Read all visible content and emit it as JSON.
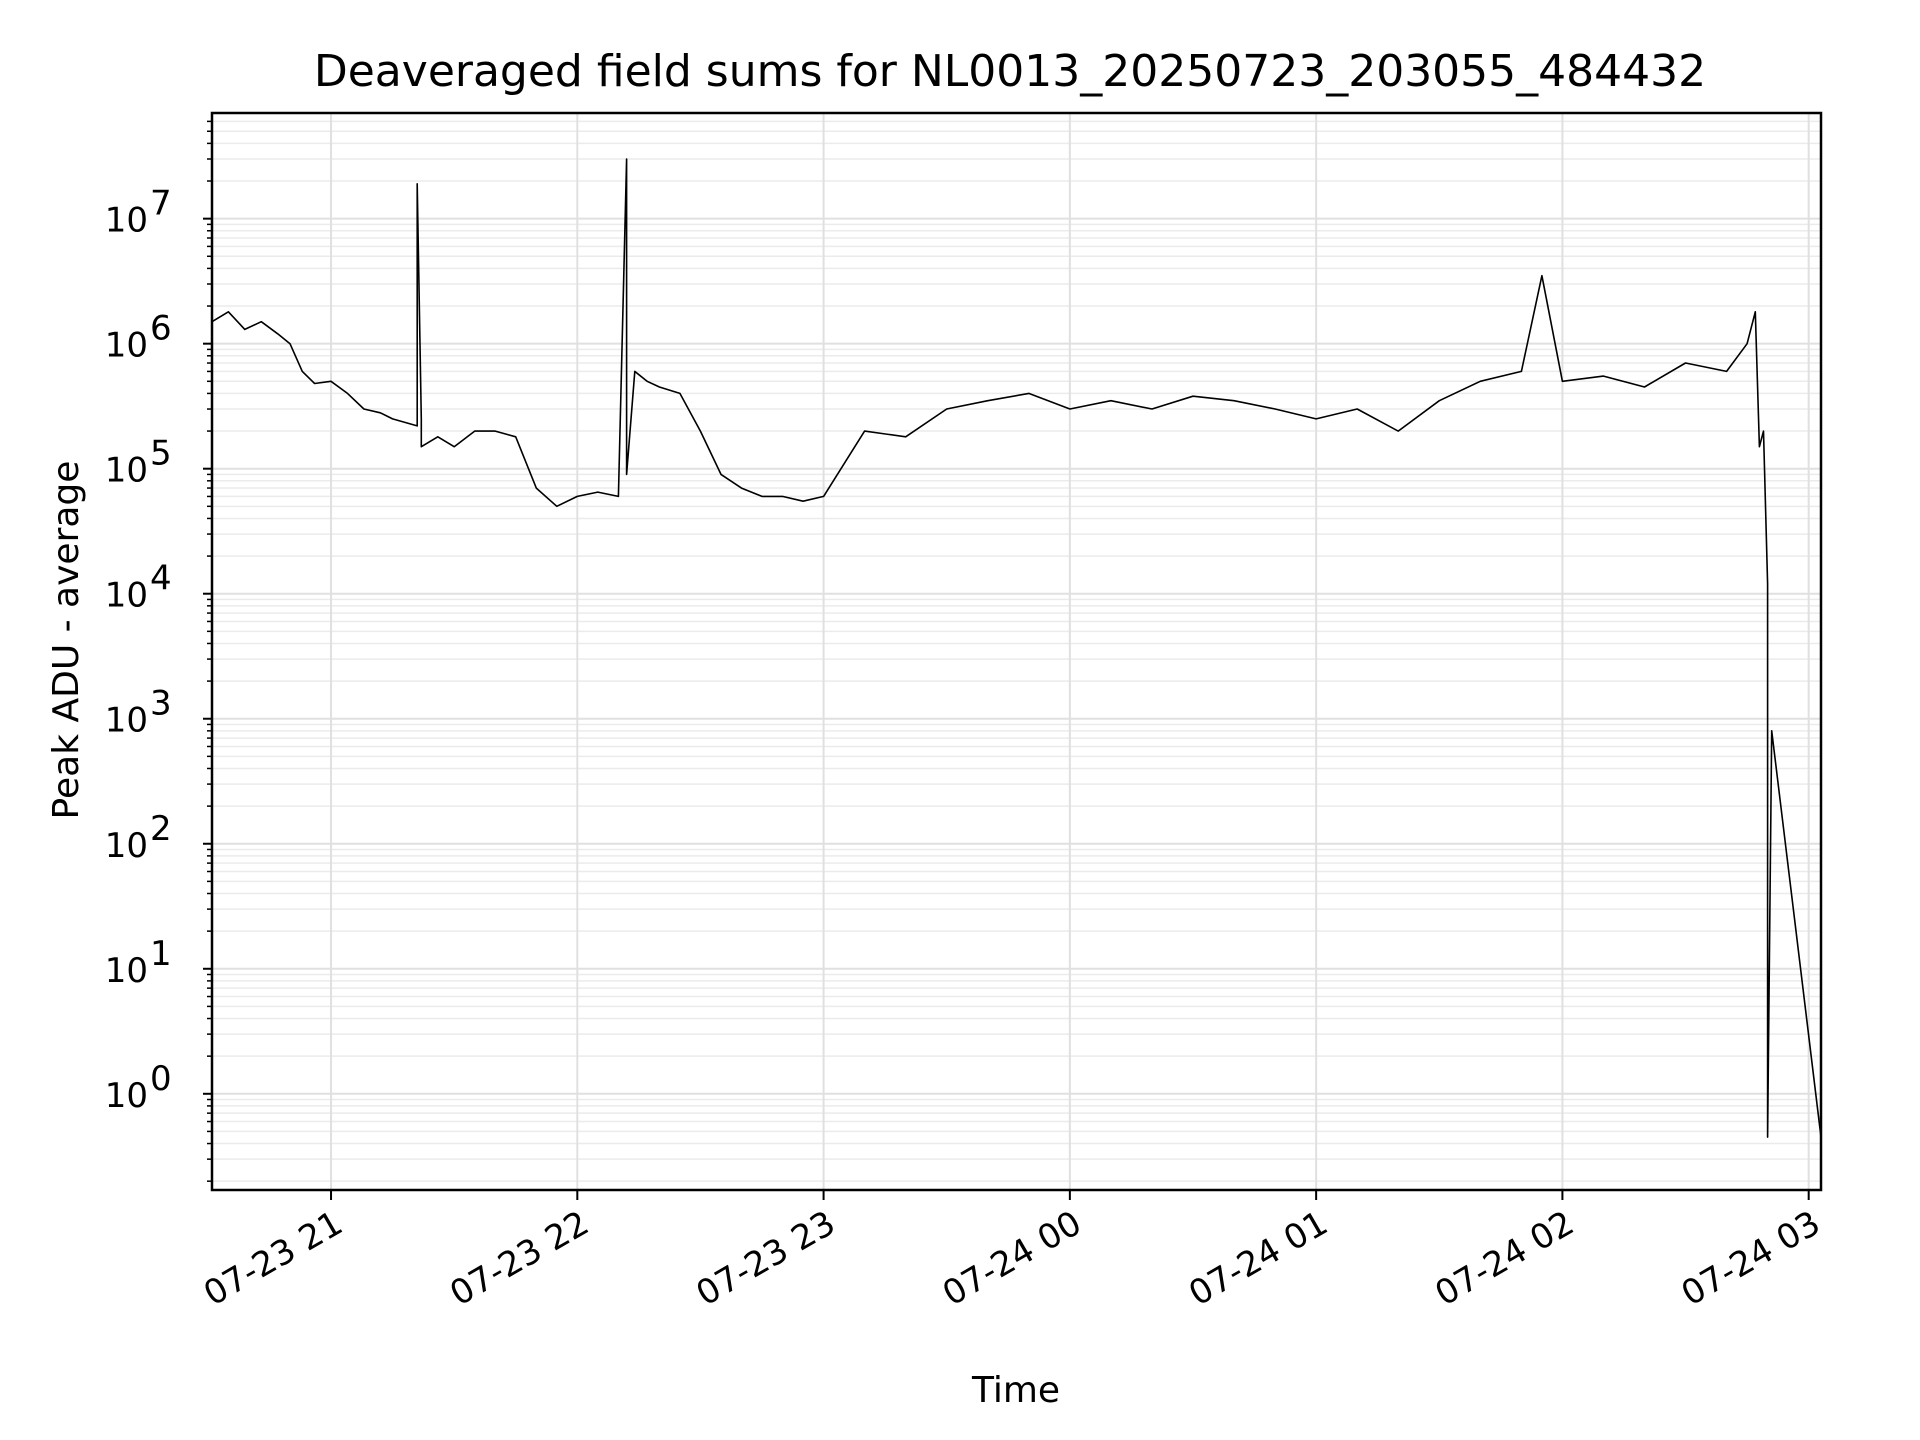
{
  "chart_data": {
    "type": "line",
    "title": "Deaveraged field sums for NL0013_20250723_203055_484432",
    "xlabel": "Time",
    "ylabel": "Peak ADU - average",
    "yscale": "log",
    "ylim": [
      0.17,
      70000000
    ],
    "xlim": [
      "2025-07-23 20:31",
      "2025-07-24 03:03"
    ],
    "grid": true,
    "color": "#000000",
    "x_ticks": [
      {
        "t": "2025-07-23 21:00",
        "label": "07-23 21"
      },
      {
        "t": "2025-07-23 22:00",
        "label": "07-23 22"
      },
      {
        "t": "2025-07-23 23:00",
        "label": "07-23 23"
      },
      {
        "t": "2025-07-24 00:00",
        "label": "07-24 00"
      },
      {
        "t": "2025-07-24 01:00",
        "label": "07-24 01"
      },
      {
        "t": "2025-07-24 02:00",
        "label": "07-24 02"
      },
      {
        "t": "2025-07-24 03:00",
        "label": "07-24 03"
      }
    ],
    "y_ticks": [
      {
        "v": 1,
        "base": "10",
        "exp": "0"
      },
      {
        "v": 10,
        "base": "10",
        "exp": "1"
      },
      {
        "v": 100,
        "base": "10",
        "exp": "2"
      },
      {
        "v": 1000,
        "base": "10",
        "exp": "3"
      },
      {
        "v": 10000,
        "base": "10",
        "exp": "4"
      },
      {
        "v": 100000,
        "base": "10",
        "exp": "5"
      },
      {
        "v": 1000000,
        "base": "10",
        "exp": "6"
      },
      {
        "v": 10000000,
        "base": "10",
        "exp": "7"
      }
    ],
    "series": [
      {
        "x": [
          "2025-07-23 20:31",
          "2025-07-23 20:35",
          "2025-07-23 20:39",
          "2025-07-23 20:43",
          "2025-07-23 20:47",
          "2025-07-23 20:50",
          "2025-07-23 20:53",
          "2025-07-23 20:56",
          "2025-07-23 21:00",
          "2025-07-23 21:04",
          "2025-07-23 21:08",
          "2025-07-23 21:12",
          "2025-07-23 21:15",
          "2025-07-23 21:21",
          "2025-07-23 21:21",
          "2025-07-23 21:22",
          "2025-07-23 21:22",
          "2025-07-23 21:26",
          "2025-07-23 21:30",
          "2025-07-23 21:35",
          "2025-07-23 21:40",
          "2025-07-23 21:45",
          "2025-07-23 21:50",
          "2025-07-23 21:55",
          "2025-07-23 22:00",
          "2025-07-23 22:05",
          "2025-07-23 22:10",
          "2025-07-23 22:12",
          "2025-07-23 22:12",
          "2025-07-23 22:14",
          "2025-07-23 22:17",
          "2025-07-23 22:20",
          "2025-07-23 22:25",
          "2025-07-23 22:30",
          "2025-07-23 22:35",
          "2025-07-23 22:40",
          "2025-07-23 22:45",
          "2025-07-23 22:50",
          "2025-07-23 22:55",
          "2025-07-23 23:00",
          "2025-07-23 23:10",
          "2025-07-23 23:20",
          "2025-07-23 23:30",
          "2025-07-23 23:40",
          "2025-07-23 23:50",
          "2025-07-24 00:00",
          "2025-07-24 00:10",
          "2025-07-24 00:20",
          "2025-07-24 00:30",
          "2025-07-24 00:40",
          "2025-07-24 00:50",
          "2025-07-24 01:00",
          "2025-07-24 01:10",
          "2025-07-24 01:20",
          "2025-07-24 01:30",
          "2025-07-24 01:40",
          "2025-07-24 01:50",
          "2025-07-24 01:55",
          "2025-07-24 02:00",
          "2025-07-24 02:10",
          "2025-07-24 02:20",
          "2025-07-24 02:30",
          "2025-07-24 02:40",
          "2025-07-24 02:45",
          "2025-07-24 02:47",
          "2025-07-24 02:48",
          "2025-07-24 02:49",
          "2025-07-24 02:50",
          "2025-07-24 02:50",
          "2025-07-24 02:51",
          "2025-07-24 03:03"
        ],
        "y": [
          1500000,
          1800000,
          1300000,
          1500000,
          1200000,
          1000000,
          600000,
          480000,
          500000,
          400000,
          300000,
          280000,
          250000,
          220000,
          19000000,
          250000,
          150000,
          180000,
          150000,
          200000,
          200000,
          180000,
          70000,
          50000,
          60000,
          65000,
          60000,
          30000000,
          90000,
          600000,
          500000,
          450000,
          400000,
          200000,
          90000,
          70000,
          60000,
          60000,
          55000,
          60000,
          200000,
          180000,
          300000,
          350000,
          400000,
          300000,
          350000,
          300000,
          380000,
          350000,
          300000,
          250000,
          300000,
          200000,
          350000,
          500000,
          600000,
          3500000,
          500000,
          550000,
          450000,
          700000,
          600000,
          1000000,
          1800000,
          150000,
          200000,
          12000,
          0.45,
          800,
          0.45
        ]
      }
    ]
  }
}
